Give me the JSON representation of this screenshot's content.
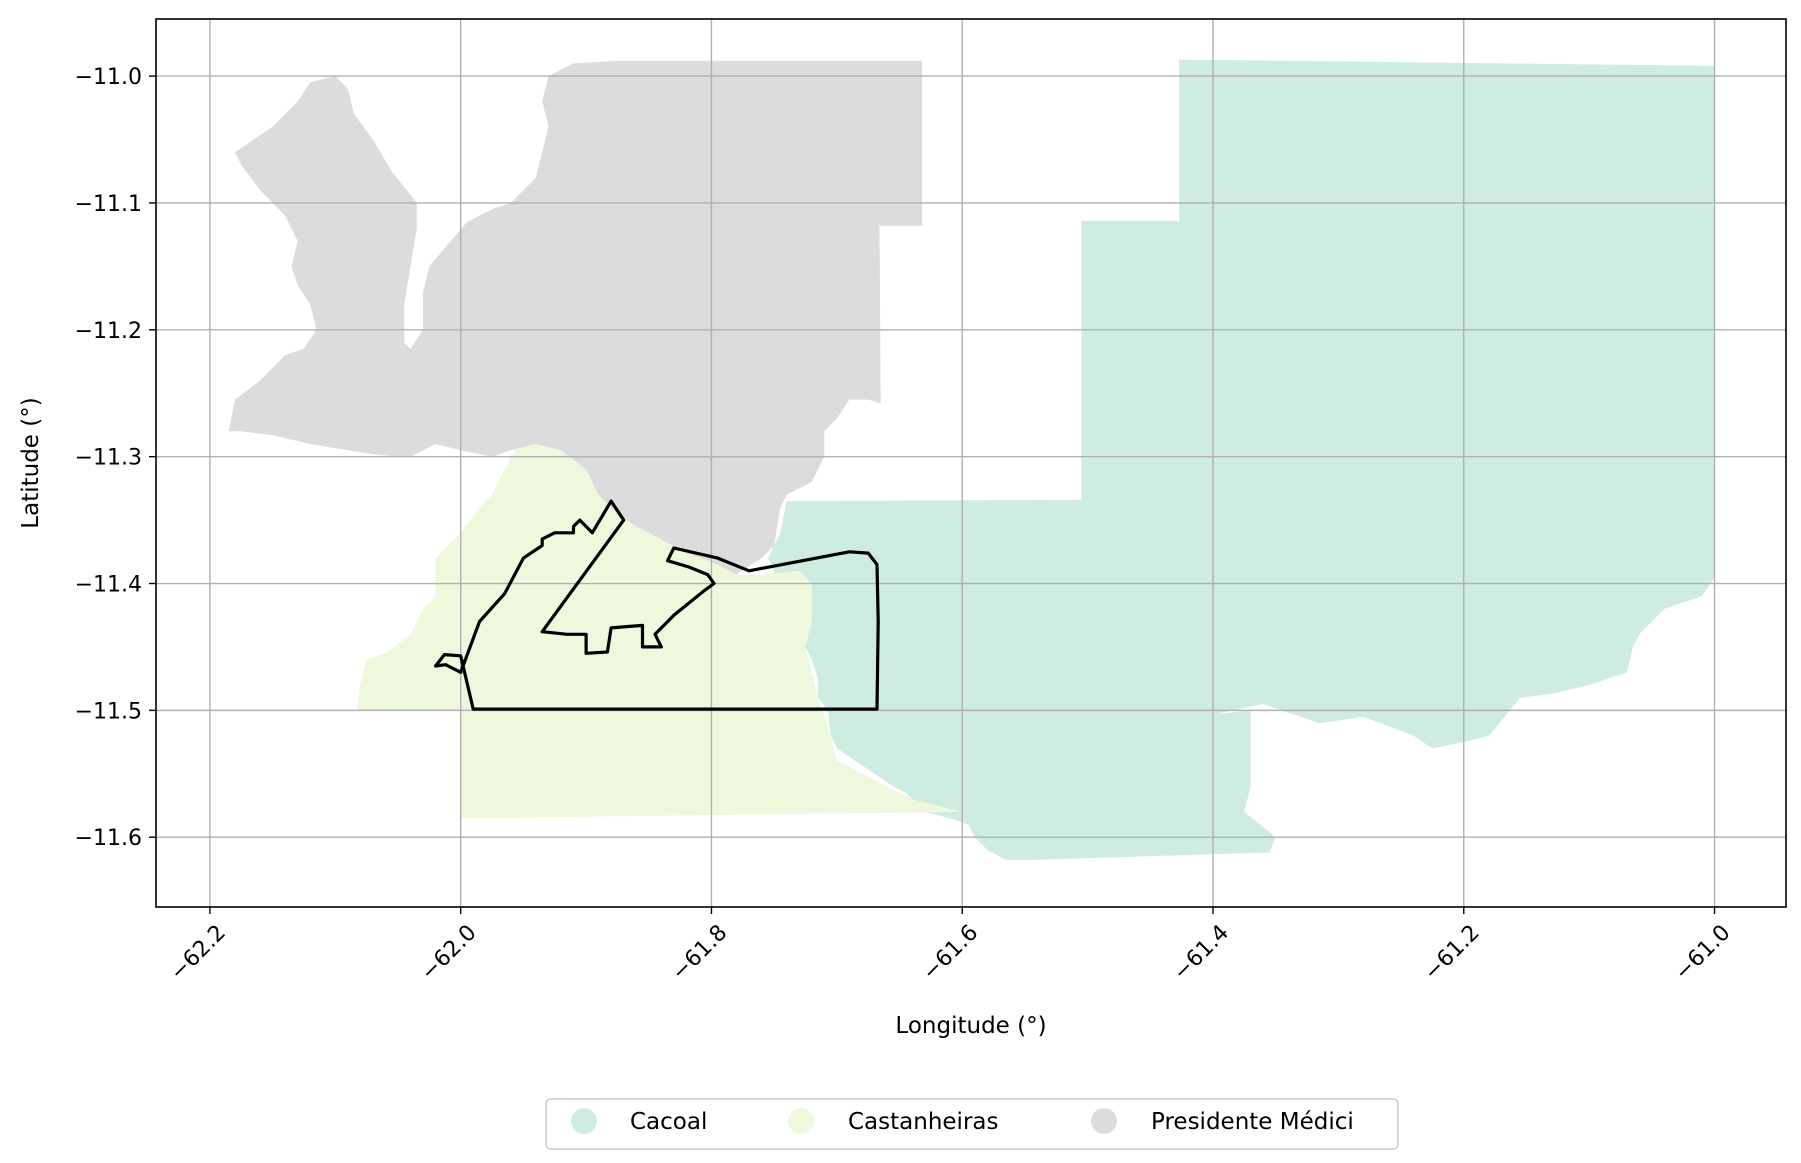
{
  "chart_data": {
    "type": "map",
    "xlabel": "Longitude (°)",
    "ylabel": "Latitude (°)",
    "xlim": [
      -62.243,
      -60.943
    ],
    "ylim": [
      -11.655,
      -10.955
    ],
    "xticks": [
      -62.2,
      -62.0,
      -61.8,
      -61.6,
      -61.4,
      -61.2,
      -61.0
    ],
    "xtick_labels": [
      "−62.2",
      "−62.0",
      "−61.8",
      "−61.6",
      "−61.4",
      "−61.2",
      "−61.0"
    ],
    "yticks": [
      -11.0,
      -11.1,
      -11.2,
      -11.3,
      -11.4,
      -11.5,
      -11.6
    ],
    "ytick_labels": [
      "−11.0",
      "−11.1",
      "−11.2",
      "−11.3",
      "−11.4",
      "−11.5",
      "−11.6"
    ],
    "grid": true,
    "legend_position": "bottom-center",
    "regions": [
      {
        "name": "Cacoal",
        "color": "#cfece0",
        "polygon": [
          [
            -61.427,
            -10.987
          ],
          [
            -61.0,
            -10.992
          ],
          [
            -61.0,
            -11.395
          ],
          [
            -61.01,
            -11.41
          ],
          [
            -61.04,
            -11.42
          ],
          [
            -61.06,
            -11.44
          ],
          [
            -61.065,
            -11.45
          ],
          [
            -61.07,
            -11.47
          ],
          [
            -61.1,
            -11.48
          ],
          [
            -61.13,
            -11.487
          ],
          [
            -61.155,
            -11.49
          ],
          [
            -61.18,
            -11.52
          ],
          [
            -61.2,
            -11.525
          ],
          [
            -61.225,
            -11.53
          ],
          [
            -61.24,
            -11.52
          ],
          [
            -61.28,
            -11.505
          ],
          [
            -61.315,
            -11.51
          ],
          [
            -61.33,
            -11.505
          ],
          [
            -61.345,
            -11.5
          ],
          [
            -61.36,
            -11.495
          ],
          [
            -61.385,
            -11.5
          ],
          [
            -61.405,
            -11.505
          ],
          [
            -61.415,
            -11.505
          ],
          [
            -61.37,
            -11.5
          ],
          [
            -61.37,
            -11.56
          ],
          [
            -61.375,
            -11.58
          ],
          [
            -61.35,
            -11.6
          ],
          [
            -61.355,
            -11.612
          ],
          [
            -61.55,
            -11.618
          ],
          [
            -61.565,
            -11.618
          ],
          [
            -61.58,
            -11.61
          ],
          [
            -61.59,
            -11.6
          ],
          [
            -61.595,
            -11.59
          ],
          [
            -61.61,
            -11.585
          ],
          [
            -61.63,
            -11.58
          ],
          [
            -61.645,
            -11.565
          ],
          [
            -61.655,
            -11.56
          ],
          [
            -61.67,
            -11.55
          ],
          [
            -61.685,
            -11.54
          ],
          [
            -61.7,
            -11.53
          ],
          [
            -61.705,
            -11.52
          ],
          [
            -61.707,
            -11.5
          ],
          [
            -61.715,
            -11.49
          ],
          [
            -61.715,
            -11.475
          ],
          [
            -61.72,
            -11.46
          ],
          [
            -61.725,
            -11.45
          ],
          [
            -61.735,
            -11.43
          ],
          [
            -61.745,
            -11.41
          ],
          [
            -61.75,
            -11.39
          ],
          [
            -61.755,
            -11.38
          ],
          [
            -61.745,
            -11.36
          ],
          [
            -61.74,
            -11.335
          ],
          [
            -61.505,
            -11.334
          ],
          [
            -61.505,
            -11.114
          ],
          [
            -61.427,
            -11.114
          ]
        ]
      },
      {
        "name": "Castanheiras",
        "color": "#eef8dc",
        "polygon": [
          [
            -61.955,
            -11.293
          ],
          [
            -61.94,
            -11.29
          ],
          [
            -61.92,
            -11.29
          ],
          [
            -61.9,
            -11.3
          ],
          [
            -61.88,
            -11.34
          ],
          [
            -61.86,
            -11.35
          ],
          [
            -61.84,
            -11.365
          ],
          [
            -61.82,
            -11.375
          ],
          [
            -61.795,
            -11.385
          ],
          [
            -61.78,
            -11.393
          ],
          [
            -61.76,
            -11.393
          ],
          [
            -61.73,
            -11.39
          ],
          [
            -61.72,
            -11.4
          ],
          [
            -61.72,
            -11.43
          ],
          [
            -61.725,
            -11.45
          ],
          [
            -61.72,
            -11.47
          ],
          [
            -61.715,
            -11.49
          ],
          [
            -61.705,
            -11.52
          ],
          [
            -61.7,
            -11.54
          ],
          [
            -61.68,
            -11.55
          ],
          [
            -61.66,
            -11.56
          ],
          [
            -61.64,
            -11.57
          ],
          [
            -61.62,
            -11.575
          ],
          [
            -61.6,
            -11.58
          ],
          [
            -62.0,
            -11.585
          ],
          [
            -62.0,
            -11.5
          ],
          [
            -62.083,
            -11.5
          ],
          [
            -62.08,
            -11.48
          ],
          [
            -62.075,
            -11.46
          ],
          [
            -62.06,
            -11.455
          ],
          [
            -62.04,
            -11.44
          ],
          [
            -62.03,
            -11.42
          ],
          [
            -62.02,
            -11.41
          ],
          [
            -62.02,
            -11.38
          ],
          [
            -62.0,
            -11.36
          ],
          [
            -61.985,
            -11.34
          ],
          [
            -61.975,
            -11.33
          ],
          [
            -61.96,
            -11.3
          ]
        ]
      },
      {
        "name": "Presidente Médici",
        "color": "#dcdcdc",
        "polygon": [
          [
            -61.875,
            -10.988
          ],
          [
            -61.632,
            -10.988
          ],
          [
            -61.632,
            -11.118
          ],
          [
            -61.666,
            -11.118
          ],
          [
            -61.665,
            -11.258
          ],
          [
            -61.675,
            -11.255
          ],
          [
            -61.69,
            -11.255
          ],
          [
            -61.7,
            -11.27
          ],
          [
            -61.71,
            -11.28
          ],
          [
            -61.71,
            -11.3
          ],
          [
            -61.72,
            -11.32
          ],
          [
            -61.74,
            -11.33
          ],
          [
            -61.745,
            -11.34
          ],
          [
            -61.75,
            -11.37
          ],
          [
            -61.76,
            -11.38
          ],
          [
            -61.78,
            -11.393
          ],
          [
            -61.8,
            -11.383
          ],
          [
            -61.82,
            -11.376
          ],
          [
            -61.84,
            -11.365
          ],
          [
            -61.86,
            -11.355
          ],
          [
            -61.875,
            -11.345
          ],
          [
            -61.89,
            -11.33
          ],
          [
            -61.9,
            -11.31
          ],
          [
            -61.92,
            -11.295
          ],
          [
            -61.94,
            -11.29
          ],
          [
            -61.96,
            -11.295
          ],
          [
            -61.975,
            -11.3
          ],
          [
            -62.0,
            -11.295
          ],
          [
            -62.02,
            -11.29
          ],
          [
            -62.04,
            -11.3
          ],
          [
            -62.05,
            -11.3
          ],
          [
            -62.07,
            -11.298
          ],
          [
            -62.09,
            -11.295
          ],
          [
            -62.12,
            -11.29
          ],
          [
            -62.15,
            -11.283
          ],
          [
            -62.175,
            -11.28
          ],
          [
            -62.185,
            -11.28
          ],
          [
            -62.18,
            -11.255
          ],
          [
            -62.16,
            -11.24
          ],
          [
            -62.14,
            -11.22
          ],
          [
            -62.125,
            -11.215
          ],
          [
            -62.115,
            -11.2
          ],
          [
            -62.12,
            -11.18
          ],
          [
            -62.13,
            -11.165
          ],
          [
            -62.135,
            -11.15
          ],
          [
            -62.13,
            -11.13
          ],
          [
            -62.14,
            -11.11
          ],
          [
            -62.15,
            -11.1
          ],
          [
            -62.16,
            -11.09
          ],
          [
            -62.175,
            -11.07
          ],
          [
            -62.18,
            -11.06
          ],
          [
            -62.15,
            -11.04
          ],
          [
            -62.13,
            -11.02
          ],
          [
            -62.12,
            -11.005
          ],
          [
            -62.1,
            -11.0
          ],
          [
            -62.09,
            -11.01
          ],
          [
            -62.085,
            -11.03
          ],
          [
            -62.07,
            -11.05
          ],
          [
            -62.055,
            -11.075
          ],
          [
            -62.035,
            -11.1
          ],
          [
            -62.035,
            -11.12
          ],
          [
            -62.04,
            -11.15
          ],
          [
            -62.045,
            -11.18
          ],
          [
            -62.045,
            -11.21
          ],
          [
            -62.04,
            -11.215
          ],
          [
            -62.03,
            -11.2
          ],
          [
            -62.03,
            -11.17
          ],
          [
            -62.025,
            -11.15
          ],
          [
            -61.995,
            -11.115
          ],
          [
            -61.975,
            -11.105
          ],
          [
            -61.96,
            -11.1
          ],
          [
            -61.94,
            -11.08
          ],
          [
            -61.935,
            -11.06
          ],
          [
            -61.93,
            -11.04
          ],
          [
            -61.935,
            -11.02
          ],
          [
            -61.93,
            -11.0
          ],
          [
            -61.91,
            -10.99
          ]
        ]
      }
    ],
    "outline": {
      "name": "",
      "color": "#000000",
      "polygon": [
        [
          -62.0,
          -11.457
        ],
        [
          -61.99,
          -11.499
        ],
        [
          -61.668,
          -11.499
        ],
        [
          -61.667,
          -11.43
        ],
        [
          -61.668,
          -11.385
        ],
        [
          -61.675,
          -11.376
        ],
        [
          -61.69,
          -11.375
        ],
        [
          -61.77,
          -11.39
        ],
        [
          -61.795,
          -11.38
        ],
        [
          -61.83,
          -11.372
        ],
        [
          -61.835,
          -11.382
        ],
        [
          -61.818,
          -11.387
        ],
        [
          -61.803,
          -11.393
        ],
        [
          -61.798,
          -11.4
        ],
        [
          -61.805,
          -11.405
        ],
        [
          -61.83,
          -11.425
        ],
        [
          -61.835,
          -11.43
        ],
        [
          -61.845,
          -11.44
        ],
        [
          -61.84,
          -11.45
        ],
        [
          -61.855,
          -11.45
        ],
        [
          -61.855,
          -11.433
        ],
        [
          -61.88,
          -11.435
        ],
        [
          -61.883,
          -11.454
        ],
        [
          -61.9,
          -11.455
        ],
        [
          -61.9,
          -11.44
        ],
        [
          -61.915,
          -11.44
        ],
        [
          -61.935,
          -11.438
        ],
        [
          -61.87,
          -11.35
        ],
        [
          -61.88,
          -11.335
        ],
        [
          -61.895,
          -11.36
        ],
        [
          -61.905,
          -11.35
        ],
        [
          -61.91,
          -11.355
        ],
        [
          -61.91,
          -11.36
        ],
        [
          -61.925,
          -11.36
        ],
        [
          -61.935,
          -11.365
        ],
        [
          -61.935,
          -11.37
        ],
        [
          -61.95,
          -11.38
        ],
        [
          -61.965,
          -11.408
        ],
        [
          -61.985,
          -11.43
        ],
        [
          -62.0,
          -11.47
        ],
        [
          -62.012,
          -11.464
        ],
        [
          -62.02,
          -11.465
        ],
        [
          -62.013,
          -11.456
        ]
      ]
    }
  },
  "legend": {
    "items": [
      {
        "label": "Cacoal",
        "color": "#cfece0"
      },
      {
        "label": "Castanheiras",
        "color": "#eef8dc"
      },
      {
        "label": "Presidente Médici",
        "color": "#dcdcdc"
      }
    ]
  }
}
